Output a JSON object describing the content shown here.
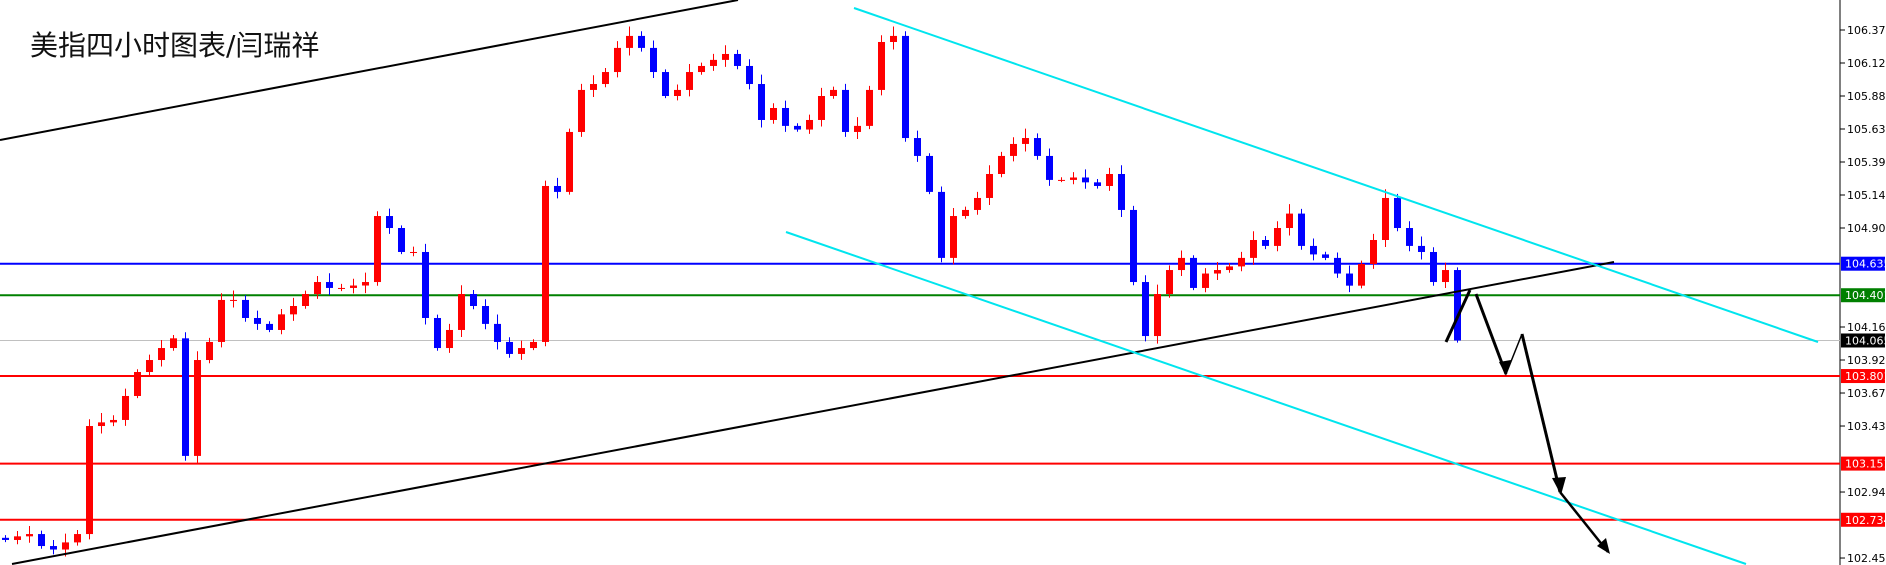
{
  "title": "美指四小时图表/闫瑞祥",
  "chart_data": {
    "type": "candlestick",
    "title": "美指四小时图表/闫瑞祥",
    "ylim": [
      102.4,
      106.62
    ],
    "y_ticks": [
      "106.370",
      "106.125",
      "105.880",
      "105.635",
      "105.390",
      "105.145",
      "104.900",
      "104.165",
      "103.920",
      "103.675",
      "103.430",
      "102.940",
      "102.450"
    ],
    "first_open": 102.6,
    "closes": [
      102.584,
      102.611,
      102.628,
      102.539,
      102.513,
      102.566,
      102.628,
      103.43,
      103.457,
      103.475,
      103.653,
      103.831,
      103.92,
      104.009,
      104.081,
      103.208,
      103.92,
      104.054,
      104.366,
      104.366,
      104.232,
      104.188,
      104.143,
      104.259,
      104.321,
      104.41,
      104.499,
      104.455,
      104.455,
      104.473,
      104.499,
      104.989,
      104.9,
      104.722,
      104.722,
      104.232,
      104.009,
      104.143,
      104.41,
      104.321,
      104.188,
      104.054,
      103.965,
      104.009,
      104.054,
      105.212,
      105.168,
      105.613,
      105.925,
      105.969,
      106.058,
      106.237,
      106.326,
      106.237,
      106.058,
      105.88,
      105.925,
      106.058,
      106.103,
      106.148,
      106.192,
      106.103,
      105.969,
      105.702,
      105.791,
      105.658,
      105.631,
      105.702,
      105.88,
      105.925,
      105.613,
      105.658,
      105.925,
      106.281,
      106.326,
      105.568,
      105.435,
      105.168,
      104.678,
      104.989,
      105.034,
      105.123,
      105.301,
      105.435,
      105.524,
      105.568,
      105.435,
      105.257,
      105.257,
      105.275,
      105.239,
      105.212,
      105.301,
      105.034,
      104.499,
      104.098,
      104.41,
      104.588,
      104.678,
      104.455,
      104.562,
      104.588,
      104.615,
      104.678,
      104.811,
      104.767,
      104.9,
      105.007,
      104.767,
      104.704,
      104.678,
      104.562,
      104.472,
      104.633,
      104.811,
      105.123,
      104.9,
      104.767,
      104.722,
      104.499,
      104.588,
      104.065
    ],
    "up_color": "#ff0000",
    "down_color": "#0000ff",
    "levels": [
      {
        "label": "104.635",
        "value": 104.635,
        "color": "#0000ff"
      },
      {
        "label": "104.401",
        "value": 104.401,
        "color": "#008000"
      },
      {
        "label": "104.065",
        "value": 104.065,
        "color": "#000000",
        "line_color": "#c0c0c0"
      },
      {
        "label": "103.801",
        "value": 103.801,
        "color": "#ff0000"
      },
      {
        "label": "103.151",
        "value": 103.151,
        "color": "#ff0000"
      },
      {
        "label": "102.734",
        "value": 102.734,
        "color": "#ff0000"
      }
    ],
    "channel_colors": {
      "trend": "#000000",
      "channel": "#00e5ee"
    }
  }
}
